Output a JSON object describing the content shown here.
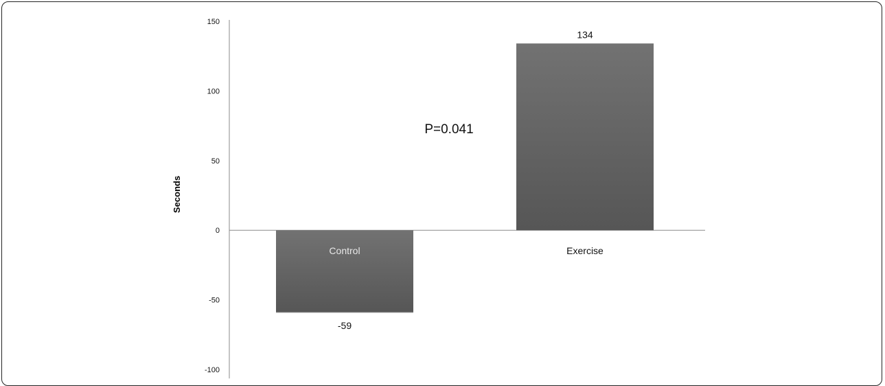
{
  "chart_data": {
    "type": "bar",
    "categories": [
      "Control",
      "Exercise"
    ],
    "values": [
      -59,
      134
    ],
    "data_labels": [
      "-59",
      "134"
    ],
    "ylabel": "Seconds",
    "xlabel": "",
    "title": "",
    "ylim": [
      -100,
      150
    ],
    "yticks": [
      150,
      100,
      50,
      0,
      -50,
      -100
    ],
    "annotation": "P=0.041",
    "grid": false,
    "legend": "none",
    "colors": {
      "bar_top": "#727272",
      "bar_bottom": "#565656",
      "axis": "#8a8a8a",
      "frame": "#222222"
    }
  }
}
